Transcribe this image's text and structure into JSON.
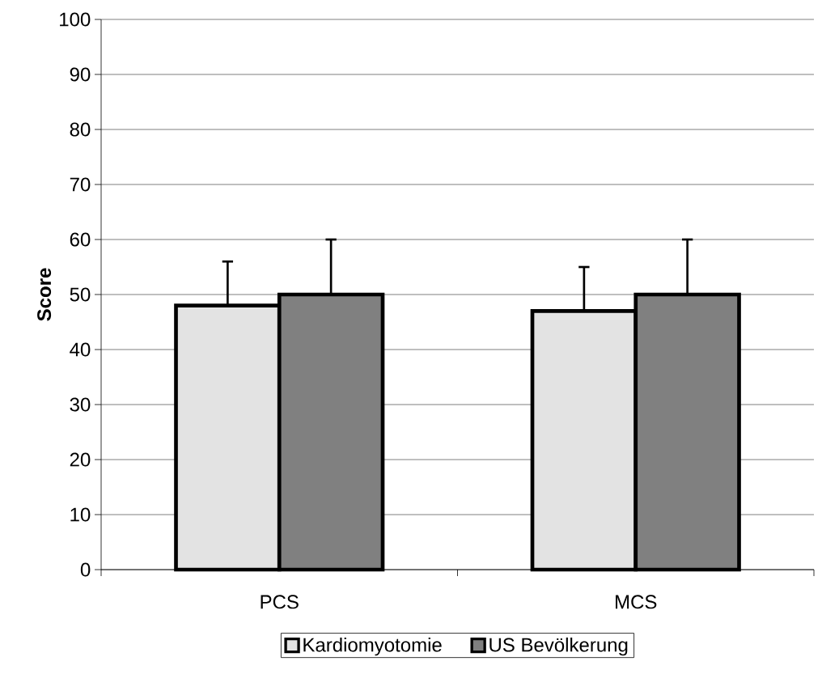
{
  "chart_data": {
    "type": "bar",
    "ylabel": "Score",
    "categories": [
      "PCS",
      "MCS"
    ],
    "series": [
      {
        "name": "Kardiomyotomie",
        "color": "#e3e3e3",
        "values": [
          48,
          47
        ],
        "errors": [
          8,
          8
        ]
      },
      {
        "name": "US Bevölkerung",
        "color": "#808080",
        "values": [
          50,
          50
        ],
        "errors": [
          10,
          10
        ]
      }
    ],
    "ylim": [
      0,
      100
    ],
    "yticks": [
      0,
      10,
      20,
      30,
      40,
      50,
      60,
      70,
      80,
      90,
      100
    ],
    "grid": "y",
    "legend": "bottom"
  }
}
